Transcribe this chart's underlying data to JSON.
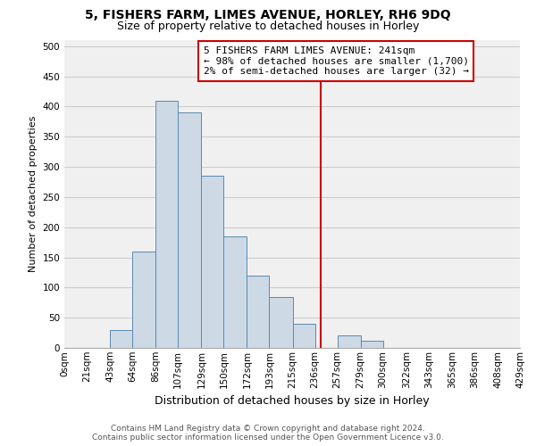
{
  "title": "5, FISHERS FARM, LIMES AVENUE, HORLEY, RH6 9DQ",
  "subtitle": "Size of property relative to detached houses in Horley",
  "xlabel": "Distribution of detached houses by size in Horley",
  "ylabel": "Number of detached properties",
  "bar_color": "#cdd9e5",
  "bar_edge_color": "#5a8ab0",
  "grid_color": "#cccccc",
  "background_color": "#f0f0f0",
  "bin_edges": [
    0,
    21,
    43,
    64,
    86,
    107,
    129,
    150,
    172,
    193,
    215,
    236,
    257,
    279,
    300,
    322,
    343,
    365,
    386,
    408,
    429
  ],
  "bin_labels": [
    "0sqm",
    "21sqm",
    "43sqm",
    "64sqm",
    "86sqm",
    "107sqm",
    "129sqm",
    "150sqm",
    "172sqm",
    "193sqm",
    "215sqm",
    "236sqm",
    "257sqm",
    "279sqm",
    "300sqm",
    "322sqm",
    "343sqm",
    "365sqm",
    "386sqm",
    "408sqm",
    "429sqm"
  ],
  "bar_heights": [
    0,
    0,
    30,
    160,
    410,
    390,
    285,
    185,
    120,
    85,
    40,
    0,
    20,
    12,
    0,
    0,
    0,
    0,
    0,
    0
  ],
  "property_line_x": 241,
  "property_line_color": "#cc0000",
  "annotation_title": "5 FISHERS FARM LIMES AVENUE: 241sqm",
  "annotation_line1": "← 98% of detached houses are smaller (1,700)",
  "annotation_line2": "2% of semi-detached houses are larger (32) →",
  "footer_line1": "Contains HM Land Registry data © Crown copyright and database right 2024.",
  "footer_line2": "Contains public sector information licensed under the Open Government Licence v3.0.",
  "ylim": [
    0,
    510
  ],
  "title_fontsize": 10,
  "subtitle_fontsize": 9,
  "xlabel_fontsize": 9,
  "ylabel_fontsize": 8,
  "tick_fontsize": 7.5,
  "annotation_fontsize": 8,
  "footer_fontsize": 6.5
}
